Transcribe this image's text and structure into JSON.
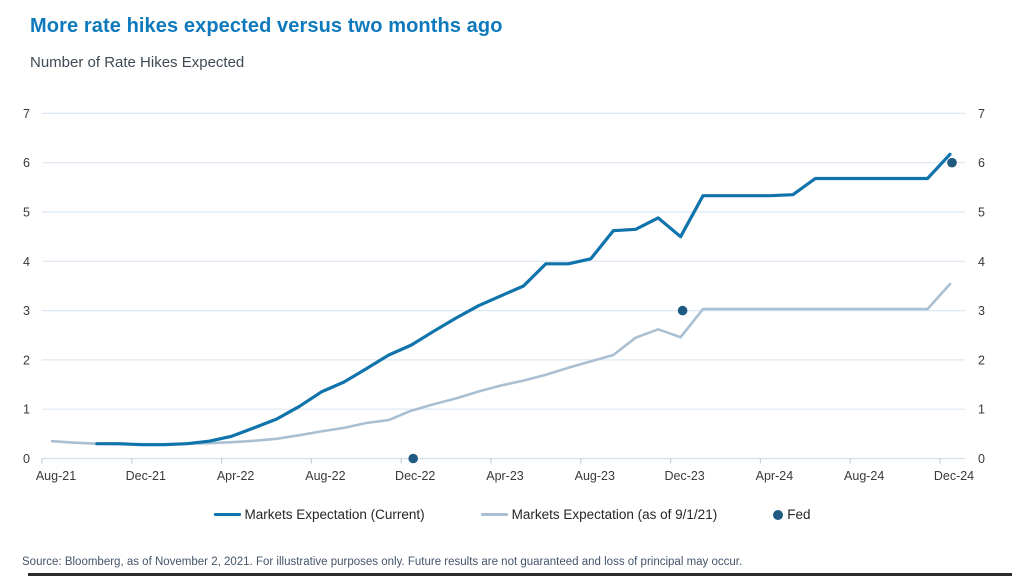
{
  "header": {
    "title": "More rate hikes expected versus two months ago",
    "subtitle": "Number of Rate Hikes Expected"
  },
  "chart_data": {
    "type": "line",
    "title": "More rate hikes expected versus two months ago",
    "ylabel": "Number of Rate Hikes Expected",
    "ylim": [
      0,
      7
    ],
    "y_ticks": [
      0,
      1,
      2,
      3,
      4,
      5,
      6,
      7
    ],
    "y_axis_sides": "both",
    "grid": "horizontal",
    "legend_position": "bottom",
    "x": [
      "Aug-21",
      "Sep-21",
      "Oct-21",
      "Nov-21",
      "Dec-21",
      "Jan-22",
      "Feb-22",
      "Mar-22",
      "Apr-22",
      "May-22",
      "Jun-22",
      "Jul-22",
      "Aug-22",
      "Sep-22",
      "Oct-22",
      "Nov-22",
      "Dec-22",
      "Jan-23",
      "Feb-23",
      "Mar-23",
      "Apr-23",
      "May-23",
      "Jun-23",
      "Jul-23",
      "Aug-23",
      "Sep-23",
      "Oct-23",
      "Nov-23",
      "Dec-23",
      "Jan-24",
      "Feb-24",
      "Mar-24",
      "Apr-24",
      "May-24",
      "Jun-24",
      "Jul-24",
      "Aug-24",
      "Sep-24",
      "Oct-24",
      "Nov-24",
      "Dec-24"
    ],
    "x_tick_labels": [
      "Aug-21",
      "Dec-21",
      "Apr-22",
      "Aug-22",
      "Dec-22",
      "Apr-23",
      "Aug-23",
      "Dec-23",
      "Apr-24",
      "Aug-24",
      "Dec-24"
    ],
    "series": [
      {
        "name": "Markets Expectation (Current)",
        "color": "#1074AC",
        "values": [
          null,
          null,
          0.3,
          0.3,
          0.28,
          0.28,
          0.3,
          0.35,
          0.45,
          0.62,
          0.8,
          1.05,
          1.35,
          1.55,
          1.82,
          2.1,
          2.3,
          2.58,
          2.85,
          3.1,
          3.3,
          3.5,
          3.95,
          3.95,
          4.05,
          4.62,
          4.65,
          4.88,
          4.5,
          5.33,
          5.33,
          5.33,
          5.33,
          5.35,
          5.68,
          5.68,
          5.68,
          5.68,
          5.68,
          5.68,
          6.17
        ]
      },
      {
        "name": "Markets Expectation (as of 9/1/21)",
        "color": "#AAC0D2",
        "values": [
          0.35,
          0.32,
          0.3,
          0.29,
          0.29,
          0.29,
          0.3,
          0.31,
          0.33,
          0.36,
          0.4,
          0.47,
          0.55,
          0.62,
          0.72,
          0.78,
          0.97,
          1.1,
          1.22,
          1.36,
          1.48,
          1.58,
          1.7,
          1.84,
          1.97,
          2.1,
          2.45,
          2.62,
          2.46,
          3.03,
          3.03,
          3.03,
          3.03,
          3.03,
          3.03,
          3.03,
          3.03,
          3.03,
          3.03,
          3.03,
          3.54
        ]
      }
    ],
    "fed": {
      "label": "Fed",
      "color": "#1F5B80",
      "points": [
        {
          "x": "Dec-22",
          "y": 0
        },
        {
          "x": "Dec-23",
          "y": 3
        },
        {
          "x": "Dec-24",
          "y": 6
        }
      ]
    }
  },
  "colors": {
    "title": "#0E79BC",
    "subtitle": "#3F4A54",
    "gridline": "#DEE8F2",
    "axis_line": "#D4DFEA",
    "tick_mark": "#C4D0DC",
    "axis_text": "#3A3A3A",
    "legend_text": "#262626",
    "source_text": "#44546A"
  },
  "footer": {
    "source": "Source: Bloomberg, as of November 2, 2021. For illustrative purposes only. Future results are not guaranteed and loss of principal may occur."
  }
}
